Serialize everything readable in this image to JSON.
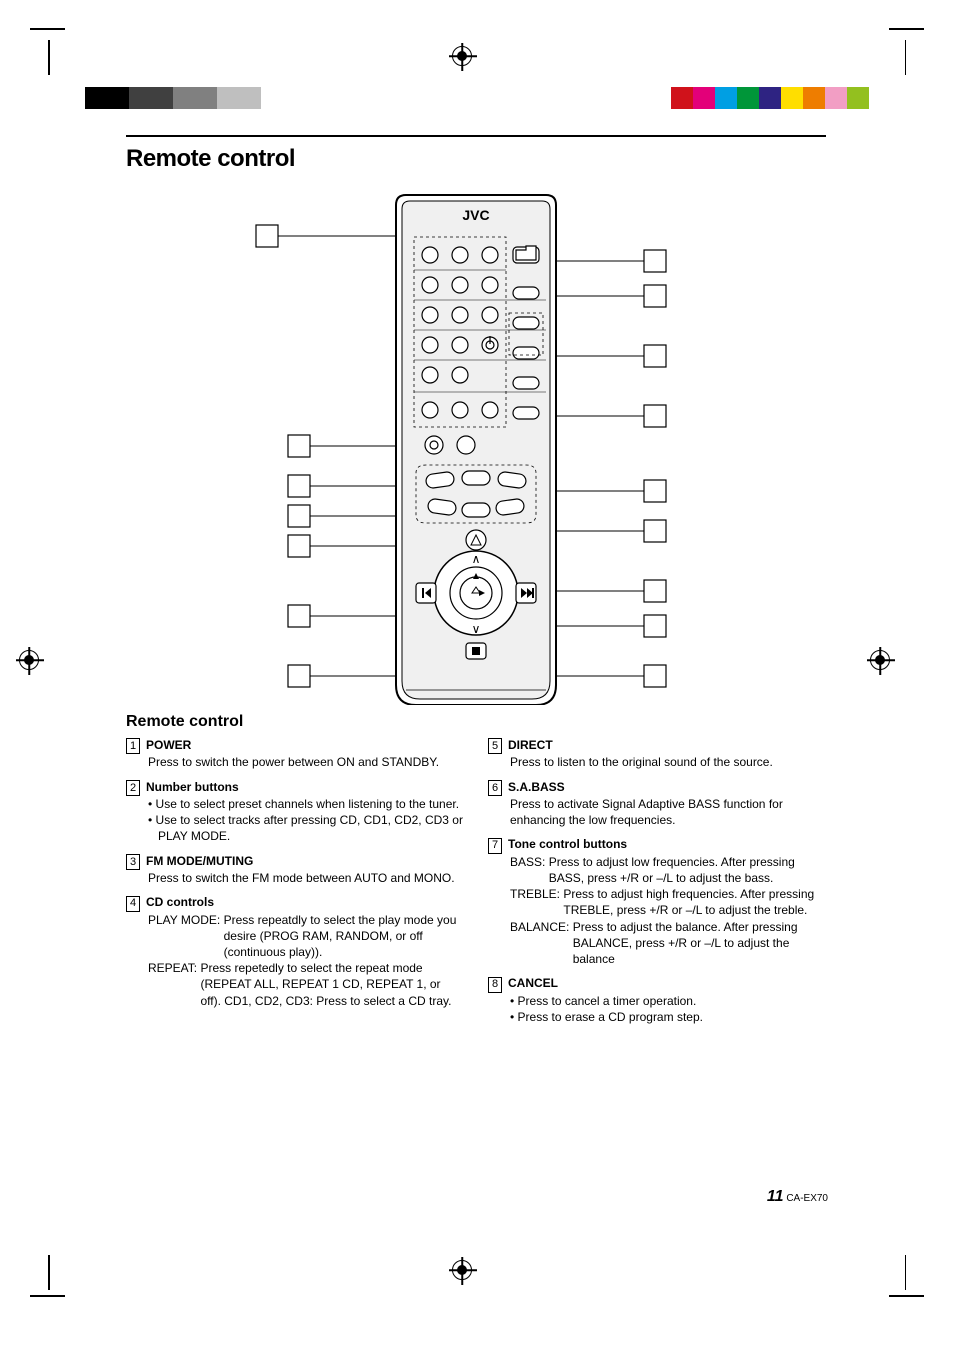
{
  "print_marks": {
    "colors": [
      "#d0121b",
      "#e30079",
      "#009fe3",
      "#009639",
      "#2e2382",
      "#ffde00",
      "#ee7d00",
      "#f29ec4",
      "#93c01f"
    ]
  },
  "title": "Remote control",
  "remote_brand": "JVC",
  "subheading": "Remote control",
  "items_left": [
    {
      "n": "1",
      "title": "POWER",
      "body": [
        "Press to switch the power between ON and STANDBY."
      ]
    },
    {
      "n": "2",
      "title": "Number buttons",
      "bullets": [
        "Use to select preset channels when listening to the tuner.",
        "Use to select tracks after pressing CD, CD1, CD2, CD3 or PLAY MODE."
      ]
    },
    {
      "n": "3",
      "title": "FM MODE/MUTING",
      "body": [
        "Press to switch the FM mode between AUTO and MONO."
      ]
    },
    {
      "n": "4",
      "title": "CD controls",
      "defs": [
        {
          "lbl": "PLAY MODE:",
          "txt": "Press repeatdly to select the play mode you desire (PROG RAM, RANDOM, or off (continuous play))."
        },
        {
          "lbl": "REPEAT:",
          "txt": "Press repetedly to select the repeat mode (REPEAT ALL, REPEAT 1 CD, REPEAT 1, or off). CD1, CD2, CD3: Press to select a CD tray."
        }
      ]
    }
  ],
  "items_right": [
    {
      "n": "5",
      "title": "DIRECT",
      "body": [
        "Press to listen to the original sound of the source."
      ]
    },
    {
      "n": "6",
      "title": "S.A.BASS",
      "body": [
        "Press to activate Signal Adaptive BASS function for enhancing the low frequencies."
      ]
    },
    {
      "n": "7",
      "title": "Tone control buttons",
      "defs": [
        {
          "lbl": "BASS:",
          "txt": "Press to adjust low frequencies. After pressing BASS, press +/R or –/L to adjust the bass."
        },
        {
          "lbl": "TREBLE:",
          "txt": "Press to adjust high frequencies. After pressing TREBLE, press +/R or –/L to adjust the treble."
        },
        {
          "lbl": "BALANCE:",
          "txt": "Press to adjust the balance. After pressing BALANCE, press +/R or –/L to adjust the balance"
        }
      ]
    },
    {
      "n": "8",
      "title": "CANCEL",
      "bullets": [
        "Press to cancel a timer operation.",
        "Press to erase a CD program step."
      ]
    }
  ],
  "footer": {
    "page": "11",
    "model": "CA-EX70"
  }
}
